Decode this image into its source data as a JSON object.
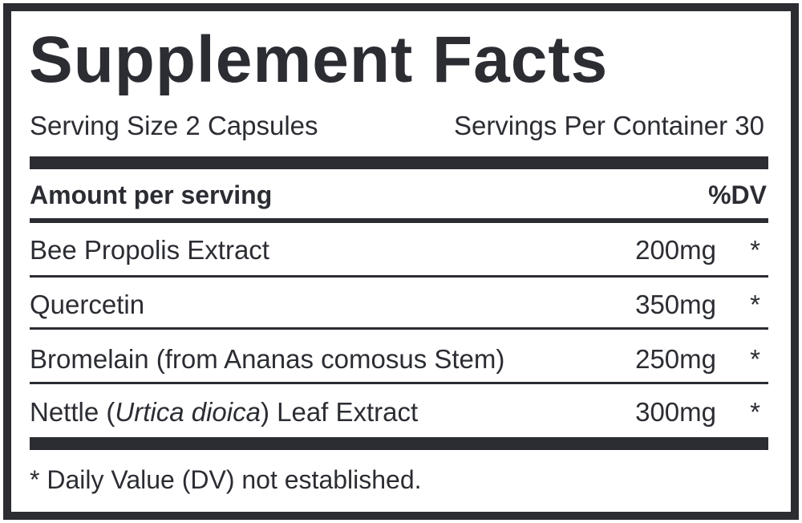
{
  "label": {
    "title": "Supplement Facts",
    "serving_size": "Serving Size 2 Capsules",
    "servings_per_container": "Servings Per Container 30",
    "header_left": "Amount per serving",
    "header_right": "%DV",
    "ingredients": [
      {
        "name": "Bee Propolis Extract",
        "amount": "200mg",
        "dv": "*"
      },
      {
        "name": "Quercetin",
        "amount": "350mg",
        "dv": "*"
      },
      {
        "name": "Bromelain (from Ananas comosus Stem)",
        "amount": "250mg",
        "dv": "*"
      },
      {
        "name_prefix": "Nettle (",
        "name_italic": "Urtica dioica",
        "name_suffix": ") Leaf Extract",
        "amount": "300mg",
        "dv": "*"
      }
    ],
    "footnote": "* Daily Value (DV) not established."
  },
  "colors": {
    "ink": "#2b2d33",
    "background": "#ffffff"
  }
}
